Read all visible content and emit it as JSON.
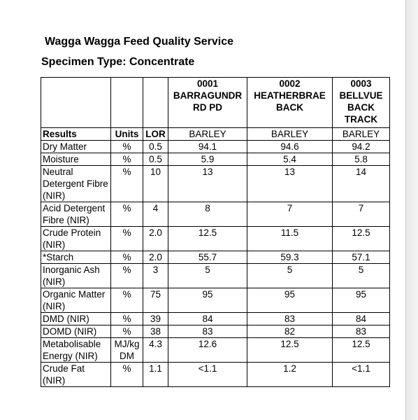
{
  "header": {
    "title": "Wagga Wagga Feed Quality Service",
    "specimen_type": "Specimen Type: Concentrate"
  },
  "table": {
    "samples": [
      {
        "id": "0001",
        "name_line1": "BARRAGUNDR",
        "name_line2": "RD PD",
        "name_line3": "",
        "feed": "BARLEY"
      },
      {
        "id": "0002",
        "name_line1": "HEATHERBRAE",
        "name_line2": "BACK",
        "name_line3": "",
        "feed": "BARLEY"
      },
      {
        "id": "0003",
        "name_line1": "BELLVUE",
        "name_line2": "BACK",
        "name_line3": "TRACK",
        "feed": "BARLEY"
      }
    ],
    "columns": {
      "results": "Results",
      "units": "Units",
      "lor": "LOR"
    },
    "rows": [
      {
        "label": "Dry Matter",
        "units": "%",
        "lor": "0.5",
        "values": [
          "94.1",
          "94.6",
          "94.2"
        ]
      },
      {
        "label": "Moisture",
        "units": "%",
        "lor": "0.5",
        "values": [
          "5.9",
          "5.4",
          "5.8"
        ]
      },
      {
        "label": "Neutral Detergent Fibre (NIR)",
        "units": "%",
        "lor": "10",
        "values": [
          "13",
          "13",
          "14"
        ]
      },
      {
        "label": "Acid Detergent Fibre (NIR)",
        "units": "%",
        "lor": "4",
        "values": [
          "8",
          "7",
          "7"
        ]
      },
      {
        "label": "Crude Protein (NIR)",
        "units": "%",
        "lor": "2.0",
        "values": [
          "12.5",
          "11.5",
          "12.5"
        ]
      },
      {
        "label": "*Starch",
        "units": "%",
        "lor": "2.0",
        "values": [
          "55.7",
          "59.3",
          "57.1"
        ]
      },
      {
        "label": "Inorganic Ash (NIR)",
        "units": "%",
        "lor": "3",
        "values": [
          "5",
          "5",
          "5"
        ]
      },
      {
        "label": "Organic Matter (NIR)",
        "units": "%",
        "lor": "75",
        "values": [
          "95",
          "95",
          "95"
        ]
      },
      {
        "label": "DMD (NIR)",
        "units": "%",
        "lor": "39",
        "values": [
          "84",
          "83",
          "84"
        ]
      },
      {
        "label": "DOMD (NIR)",
        "units": "%",
        "lor": "38",
        "values": [
          "83",
          "82",
          "83"
        ]
      },
      {
        "label": "Metabolisable Energy (NIR)",
        "units": "MJ/kg DM",
        "lor": "4.3",
        "values": [
          "12.6",
          "12.5",
          "12.5"
        ]
      },
      {
        "label": "Crude Fat (NIR)",
        "units": "%",
        "lor": "1.1",
        "values": [
          "<1.1",
          "1.2",
          "<1.1"
        ]
      }
    ]
  }
}
